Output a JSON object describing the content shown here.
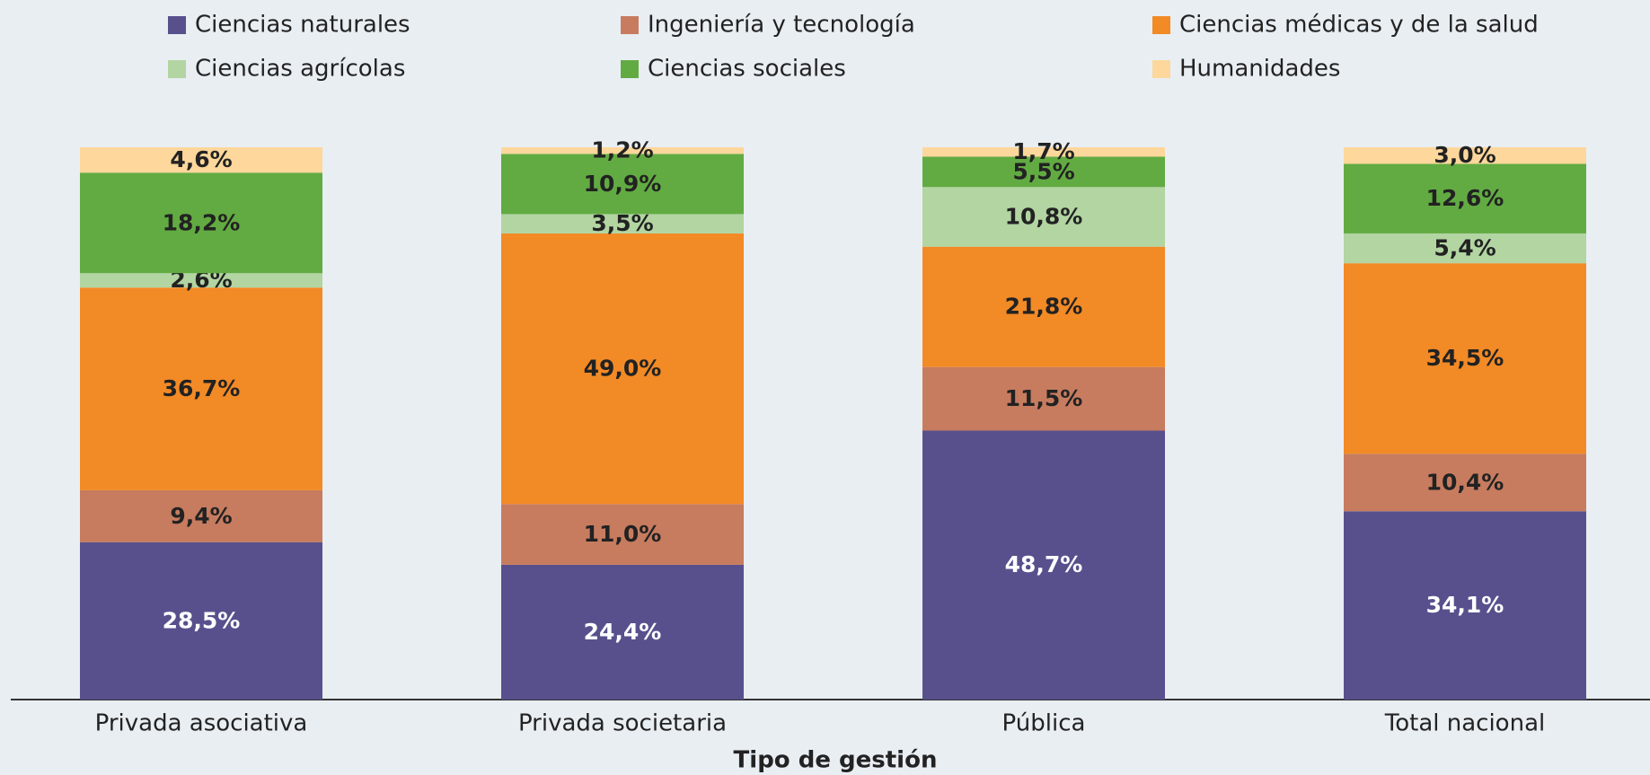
{
  "chart_data": {
    "type": "stacked_bar",
    "x_label": "Tipo de gestión",
    "categories": [
      "Privada asociativa",
      "Privada societaria",
      "Pública",
      "Total nacional"
    ],
    "ylim": [
      0,
      100
    ],
    "series": [
      {
        "name": "Ciencias naturales",
        "color": "#58508d",
        "values": [
          28.5,
          24.4,
          48.7,
          34.1
        ],
        "value_labels": [
          "28,5%",
          "24,4%",
          "48,7%",
          "34,1%"
        ]
      },
      {
        "name": "Ingeniería y tecnología",
        "color": "#c77c5f",
        "values": [
          9.4,
          11.0,
          11.5,
          10.4
        ],
        "value_labels": [
          "9,4%",
          "11,0%",
          "11,5%",
          "10,4%"
        ]
      },
      {
        "name": "Ciencias médicas y de la salud",
        "color": "#f28a26",
        "values": [
          36.7,
          49.0,
          21.8,
          34.5
        ],
        "value_labels": [
          "36,7%",
          "49,0%",
          "21,8%",
          "34,5%"
        ]
      },
      {
        "name": "Ciencias agrícolas",
        "color": "#b2d5a2",
        "values": [
          2.6,
          3.5,
          10.8,
          5.4
        ],
        "value_labels": [
          "2,6%",
          "3,5%",
          "10,8%",
          "5,4%"
        ]
      },
      {
        "name": "Ciencias sociales",
        "color": "#62ab42",
        "values": [
          18.2,
          10.9,
          5.5,
          12.6
        ],
        "value_labels": [
          "18,2%",
          "10,9%",
          "5,5%",
          "12,6%"
        ]
      },
      {
        "name": "Humanidades",
        "color": "#fdd79b",
        "values": [
          4.6,
          1.2,
          1.7,
          3.0
        ],
        "value_labels": [
          "4,6%",
          "1,2%",
          "1,7%",
          "3,0%"
        ]
      }
    ]
  }
}
